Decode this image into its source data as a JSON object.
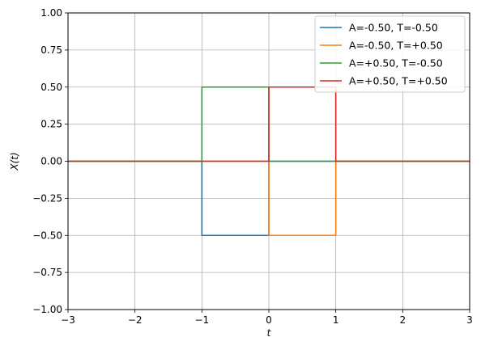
{
  "chart_data": {
    "type": "line",
    "title": "",
    "xlabel": "t",
    "ylabel": "X(t)",
    "xlim": [
      -3,
      3
    ],
    "ylim": [
      -1,
      1
    ],
    "xticks": [
      -3,
      -2,
      -1,
      0,
      1,
      2,
      3
    ],
    "xtick_labels": [
      "−3",
      "−2",
      "−1",
      "0",
      "1",
      "2",
      "3"
    ],
    "yticks": [
      -1,
      -0.75,
      -0.5,
      -0.25,
      0,
      0.25,
      0.5,
      0.75,
      1
    ],
    "ytick_labels": [
      "−1.00",
      "−0.75",
      "−0.50",
      "−0.25",
      "0.00",
      "0.25",
      "0.50",
      "0.75",
      "1.00"
    ],
    "grid": true,
    "legend_position": "top-right",
    "series": [
      {
        "name": "A=-0.50, T=-0.50",
        "color": "#1f77b4",
        "x": [
          -3,
          -1,
          -1,
          0,
          0,
          3
        ],
        "y": [
          0,
          0,
          -0.5,
          -0.5,
          0,
          0
        ]
      },
      {
        "name": "A=-0.50, T=+0.50",
        "color": "#ff7f0e",
        "x": [
          -3,
          0,
          0,
          1,
          1,
          3
        ],
        "y": [
          0,
          0,
          -0.5,
          -0.5,
          0,
          0
        ]
      },
      {
        "name": "A=+0.50, T=-0.50",
        "color": "#2ca02c",
        "x": [
          -3,
          -1,
          -1,
          0,
          0,
          3
        ],
        "y": [
          0,
          0,
          0.5,
          0.5,
          0,
          0
        ]
      },
      {
        "name": "A=+0.50, T=+0.50",
        "color": "#d62728",
        "x": [
          -3,
          0,
          0,
          1,
          1,
          3
        ],
        "y": [
          0,
          0,
          0.5,
          0.5,
          0,
          0
        ]
      }
    ]
  }
}
